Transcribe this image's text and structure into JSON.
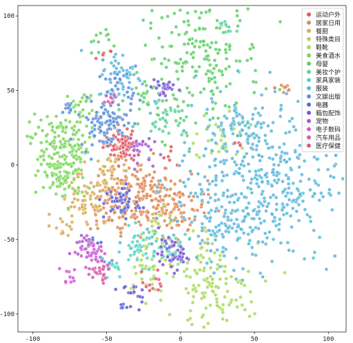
{
  "chart_data": {
    "type": "scatter",
    "title": "",
    "xlabel": "",
    "ylabel": "",
    "xlim": [
      -110,
      112
    ],
    "ylim": [
      -112,
      107
    ],
    "xticks": [
      -100,
      -50,
      0,
      50,
      100
    ],
    "yticks": [
      100,
      50,
      0,
      -50,
      -100
    ],
    "grid": false,
    "legend_position": "top-right",
    "series": [
      {
        "name": "运动户外",
        "color": "#e05a4f",
        "clusters": [
          [
            -40,
            15,
            6,
            40
          ],
          [
            -52,
            72,
            3,
            6
          ],
          [
            -5,
            8,
            4,
            6
          ]
        ]
      },
      {
        "name": "居家日用",
        "color": "#de8a56",
        "clusters": [
          [
            -28,
            -20,
            12,
            150
          ],
          [
            -2,
            -28,
            10,
            90
          ],
          [
            -45,
            -28,
            8,
            60
          ],
          [
            70,
            52,
            3,
            10
          ]
        ]
      },
      {
        "name": "餐厨",
        "color": "#d8ad56",
        "clusters": [
          [
            -65,
            -25,
            9,
            70
          ],
          [
            -45,
            -5,
            7,
            40
          ],
          [
            -80,
            -40,
            4,
            12
          ]
        ]
      },
      {
        "name": "特殊类目",
        "color": "#bbd159",
        "clusters": [
          [
            -15,
            -42,
            6,
            25
          ],
          [
            15,
            -50,
            5,
            12
          ]
        ]
      },
      {
        "name": "鞋靴",
        "color": "#a8dc5a",
        "clusters": [
          [
            20,
            -85,
            16,
            120
          ],
          [
            -22,
            -70,
            8,
            35
          ],
          [
            28,
            20,
            9,
            40
          ]
        ]
      },
      {
        "name": "美食酒水",
        "color": "#7ad85a",
        "clusters": [
          [
            -82,
            15,
            10,
            130
          ],
          [
            -80,
            -8,
            8,
            80
          ],
          [
            -67,
            40,
            5,
            20
          ]
        ]
      },
      {
        "name": "母婴",
        "color": "#5fd068",
        "clusters": [
          [
            15,
            72,
            20,
            190
          ],
          [
            -20,
            45,
            8,
            30
          ],
          [
            -55,
            85,
            4,
            10
          ]
        ]
      },
      {
        "name": "美妆个护",
        "color": "#5ad39a",
        "clusters": [
          [
            -8,
            30,
            6,
            30
          ],
          [
            30,
            92,
            3,
            10
          ],
          [
            -12,
            -50,
            5,
            12
          ]
        ]
      },
      {
        "name": "家具家装",
        "color": "#58d3c1",
        "clusters": [
          [
            -28,
            -55,
            6,
            40
          ],
          [
            -5,
            -58,
            5,
            25
          ],
          [
            -45,
            -70,
            4,
            12
          ]
        ]
      },
      {
        "name": "服装",
        "color": "#5ab9dd",
        "clusters": [
          [
            52,
            -10,
            28,
            440
          ],
          [
            40,
            25,
            10,
            40
          ],
          [
            -40,
            60,
            8,
            50
          ],
          [
            30,
            -40,
            12,
            60
          ]
        ]
      },
      {
        "name": "文娱出版",
        "color": "#5a8fdc",
        "clusters": [
          [
            -52,
            28,
            8,
            90
          ],
          [
            -40,
            50,
            6,
            30
          ],
          [
            -75,
            38,
            2.5,
            10
          ],
          [
            -52,
            -65,
            3,
            8
          ]
        ]
      },
      {
        "name": "电器",
        "color": "#5a63d8",
        "clusters": [
          [
            -40,
            -25,
            6,
            45
          ],
          [
            -35,
            -90,
            5,
            15
          ],
          [
            -60,
            -52,
            3,
            8
          ]
        ]
      },
      {
        "name": "箱包配饰",
        "color": "#7a58d6",
        "clusters": [
          [
            -5,
            -60,
            5,
            45
          ],
          [
            -12,
            52,
            4,
            25
          ],
          [
            -30,
            -85,
            3,
            8
          ]
        ]
      },
      {
        "name": "宠物",
        "color": "#a758d6",
        "clusters": [
          [
            -30,
            12,
            5,
            25
          ],
          [
            -65,
            -55,
            5,
            20
          ]
        ]
      },
      {
        "name": "电子数码",
        "color": "#d258d4",
        "clusters": [
          [
            -60,
            -58,
            5,
            30
          ],
          [
            -75,
            -75,
            4,
            10
          ]
        ]
      },
      {
        "name": "汽车用品",
        "color": "#d95aa6",
        "clusters": [
          [
            -55,
            -72,
            4,
            25
          ],
          [
            -50,
            45,
            3,
            8
          ]
        ]
      },
      {
        "name": "医疗保健",
        "color": "#e05a72",
        "clusters": [
          [
            -38,
            10,
            4,
            30
          ],
          [
            -18,
            -80,
            4,
            12
          ],
          [
            40,
            15,
            2,
            4
          ]
        ]
      }
    ]
  }
}
